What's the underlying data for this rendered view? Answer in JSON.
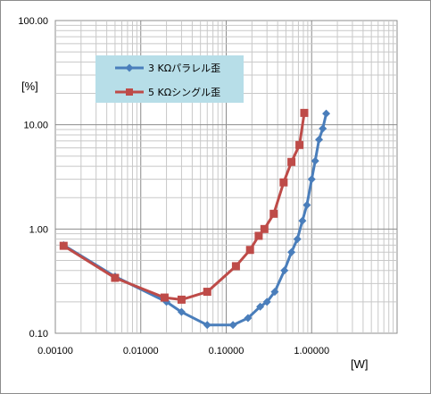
{
  "chart_data": {
    "type": "line",
    "xscale": "log",
    "yscale": "log",
    "xlim": [
      0.001,
      10
    ],
    "ylim": [
      0.1,
      100
    ],
    "xticks": [
      "0.00100",
      "0.01000",
      "0.10000",
      "1.00000"
    ],
    "yticks": [
      "0.10",
      "1.00",
      "10.00",
      "100.00"
    ],
    "xlabel": "[W]",
    "ylabel": "[%]",
    "grid": true,
    "legend_position": "top-left",
    "series": [
      {
        "name": "3 KΩパラレル歪",
        "color": "#4a7ebb",
        "marker": "diamond",
        "points": [
          [
            0.00125,
            0.7
          ],
          [
            0.005,
            0.35
          ],
          [
            0.02,
            0.2
          ],
          [
            0.03,
            0.16
          ],
          [
            0.06,
            0.12
          ],
          [
            0.12,
            0.12
          ],
          [
            0.18,
            0.14
          ],
          [
            0.25,
            0.18
          ],
          [
            0.3,
            0.2
          ],
          [
            0.37,
            0.25
          ],
          [
            0.48,
            0.4
          ],
          [
            0.58,
            0.6
          ],
          [
            0.68,
            0.8
          ],
          [
            0.78,
            1.2
          ],
          [
            0.88,
            1.7
          ],
          [
            1.0,
            3.0
          ],
          [
            1.1,
            4.5
          ],
          [
            1.22,
            7.2
          ],
          [
            1.35,
            9.2
          ],
          [
            1.48,
            12.8
          ]
        ]
      },
      {
        "name": "5 KΩシングル歪",
        "color": "#be4b48",
        "marker": "square",
        "points": [
          [
            0.00125,
            0.69
          ],
          [
            0.005,
            0.34
          ],
          [
            0.019,
            0.22
          ],
          [
            0.03,
            0.21
          ],
          [
            0.06,
            0.25
          ],
          [
            0.13,
            0.44
          ],
          [
            0.19,
            0.63
          ],
          [
            0.24,
            0.86
          ],
          [
            0.28,
            1.0
          ],
          [
            0.36,
            1.4
          ],
          [
            0.47,
            2.8
          ],
          [
            0.58,
            4.4
          ],
          [
            0.72,
            6.4
          ],
          [
            0.82,
            13.0
          ]
        ]
      }
    ]
  }
}
